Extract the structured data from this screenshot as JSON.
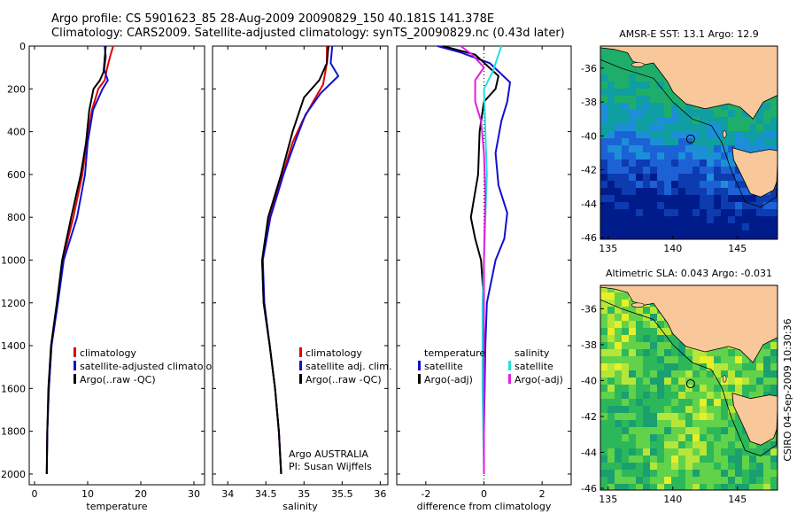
{
  "header": {
    "line1": "Argo profile: CS 5901623_85 28-Aug-2009 20090829_150 40.181S 141.378E",
    "line2": "Climatology: CARS2009. Satellite-adjusted climatology: synTS_20090829.nc (0.43d later)"
  },
  "colors": {
    "climatology": "#e00000",
    "satellite": "#1010d0",
    "argo": "#000000",
    "sal_sat": "#20e0e0",
    "sal_argo": "#e020e0",
    "land": "#f8c89a",
    "coast": "#000000"
  },
  "chart_data": [
    {
      "type": "line",
      "xlabel": "temperature",
      "xlim": [
        -1,
        32
      ],
      "xticks": [
        0,
        10,
        20,
        30
      ],
      "ylim": [
        0,
        2050
      ],
      "yticks": [
        0,
        200,
        400,
        600,
        800,
        1000,
        1200,
        1400,
        1600,
        1800,
        2000
      ],
      "legend": [
        "climatology",
        "satellite-adjusted climatology",
        "Argo(..raw -QC)"
      ],
      "series": [
        {
          "name": "climatology",
          "color": "#e00000",
          "values": [
            [
              14.8,
              0
            ],
            [
              14.2,
              50
            ],
            [
              13.6,
              110
            ],
            [
              13.2,
              160
            ],
            [
              12.0,
              200
            ],
            [
              10.8,
              300
            ],
            [
              9.8,
              450
            ],
            [
              9.0,
              600
            ],
            [
              7.3,
              800
            ],
            [
              5.3,
              1000
            ],
            [
              4.3,
              1200
            ],
            [
              3.2,
              1400
            ],
            [
              2.7,
              1600
            ],
            [
              2.4,
              1800
            ],
            [
              2.3,
              2000
            ]
          ]
        },
        {
          "name": "satellite-adjusted climatology",
          "color": "#1010d0",
          "values": [
            [
              13.2,
              0
            ],
            [
              13.4,
              50
            ],
            [
              13.1,
              110
            ],
            [
              13.8,
              160
            ],
            [
              12.8,
              200
            ],
            [
              11.0,
              300
            ],
            [
              10.0,
              450
            ],
            [
              9.5,
              600
            ],
            [
              8.0,
              800
            ],
            [
              5.5,
              1000
            ],
            [
              4.4,
              1200
            ],
            [
              3.2,
              1400
            ],
            [
              2.7,
              1600
            ],
            [
              2.4,
              1800
            ],
            [
              2.3,
              2000
            ]
          ]
        },
        {
          "name": "Argo(..raw -QC)",
          "color": "#000000",
          "values": [
            [
              13.4,
              0
            ],
            [
              13.2,
              60
            ],
            [
              13.0,
              120
            ],
            [
              12.3,
              160
            ],
            [
              11.1,
              200
            ],
            [
              10.3,
              300
            ],
            [
              9.7,
              450
            ],
            [
              8.7,
              600
            ],
            [
              6.9,
              800
            ],
            [
              5.2,
              1000
            ],
            [
              4.2,
              1200
            ],
            [
              3.1,
              1400
            ],
            [
              2.6,
              1600
            ],
            [
              2.4,
              1800
            ],
            [
              2.3,
              2000
            ]
          ]
        }
      ]
    },
    {
      "type": "line",
      "xlabel": "salinity",
      "xlim": [
        33.8,
        36.1
      ],
      "xticks": [
        34,
        34.5,
        35,
        35.5,
        36
      ],
      "xticklabels": [
        "34",
        "34.5",
        "35",
        "35.5",
        "36"
      ],
      "ylim": [
        0,
        2050
      ],
      "legend": [
        "climatology",
        "satellite adj. clim.",
        "Argo(..raw -QC)"
      ],
      "annotation": [
        "Argo AUSTRALIA",
        "PI: Susan Wijffels"
      ],
      "series": [
        {
          "name": "climatology",
          "color": "#e00000",
          "values": [
            [
              35.3,
              0
            ],
            [
              35.3,
              80
            ],
            [
              35.25,
              180
            ],
            [
              35.12,
              260
            ],
            [
              34.98,
              350
            ],
            [
              34.85,
              450
            ],
            [
              34.72,
              600
            ],
            [
              34.55,
              800
            ],
            [
              34.45,
              1000
            ],
            [
              34.47,
              1200
            ],
            [
              34.55,
              1400
            ],
            [
              34.62,
              1600
            ],
            [
              34.67,
              1800
            ],
            [
              34.7,
              2000
            ]
          ]
        },
        {
          "name": "satellite adj. clim.",
          "color": "#1010d0",
          "values": [
            [
              35.37,
              0
            ],
            [
              35.35,
              80
            ],
            [
              35.45,
              140
            ],
            [
              35.22,
              220
            ],
            [
              35.02,
              320
            ],
            [
              34.88,
              450
            ],
            [
              34.73,
              600
            ],
            [
              34.56,
              800
            ],
            [
              34.46,
              1000
            ],
            [
              34.48,
              1200
            ],
            [
              34.55,
              1400
            ],
            [
              34.62,
              1600
            ],
            [
              34.67,
              1800
            ],
            [
              34.7,
              2000
            ]
          ]
        },
        {
          "name": "Argo(..raw -QC)",
          "color": "#000000",
          "values": [
            [
              35.32,
              0
            ],
            [
              35.3,
              80
            ],
            [
              35.2,
              160
            ],
            [
              35.0,
              240
            ],
            [
              34.85,
              400
            ],
            [
              34.7,
              600
            ],
            [
              34.53,
              800
            ],
            [
              34.45,
              1000
            ],
            [
              34.47,
              1200
            ],
            [
              34.55,
              1400
            ],
            [
              34.62,
              1600
            ],
            [
              34.67,
              1800
            ],
            [
              34.7,
              2000
            ]
          ]
        }
      ]
    },
    {
      "type": "line",
      "xlabel": "difference from climatology",
      "xlim": [
        -3,
        3
      ],
      "xticks": [
        -2,
        0,
        2
      ],
      "ylim": [
        0,
        2050
      ],
      "legend": [
        "temperature",
        "satellite",
        "Argo(-adj)",
        "salinity",
        "satellite",
        "Argo(-adj)"
      ],
      "series": [
        {
          "name": "satellite",
          "color": "#1010d0",
          "values": [
            [
              -1.6,
              0
            ],
            [
              -0.8,
              30
            ],
            [
              0.2,
              80
            ],
            [
              0.9,
              170
            ],
            [
              0.8,
              260
            ],
            [
              0.6,
              350
            ],
            [
              0.4,
              500
            ],
            [
              0.5,
              650
            ],
            [
              0.8,
              780
            ],
            [
              0.7,
              900
            ],
            [
              0.4,
              1000
            ],
            [
              0.1,
              1200
            ],
            [
              0.05,
              1400
            ],
            [
              0,
              1800
            ],
            [
              0,
              2000
            ]
          ]
        },
        {
          "name": "Argo(-adj)",
          "color": "#000000",
          "values": [
            [
              -1.4,
              0
            ],
            [
              -0.3,
              40
            ],
            [
              0.5,
              140
            ],
            [
              0.4,
              200
            ],
            [
              0.0,
              260
            ],
            [
              -0.15,
              400
            ],
            [
              -0.2,
              600
            ],
            [
              -0.45,
              800
            ],
            [
              -0.3,
              900
            ],
            [
              -0.1,
              1000
            ],
            [
              0,
              1200
            ],
            [
              0,
              2000
            ]
          ]
        },
        {
          "name": "satellite",
          "color": "#20e0e0",
          "values": [
            [
              0.6,
              0
            ],
            [
              0.5,
              40
            ],
            [
              0.3,
              120
            ],
            [
              0.0,
              200
            ],
            [
              0.05,
              400
            ],
            [
              0.1,
              600
            ],
            [
              0.05,
              800
            ],
            [
              0.0,
              1000
            ],
            [
              -0.05,
              1200
            ],
            [
              -0.05,
              1600
            ],
            [
              0,
              2000
            ]
          ]
        },
        {
          "name": "Argo(-adj)",
          "color": "#e020e0",
          "values": [
            [
              -0.8,
              0
            ],
            [
              -0.4,
              40
            ],
            [
              0.0,
              100
            ],
            [
              -0.3,
              160
            ],
            [
              -0.3,
              260
            ],
            [
              -0.1,
              350
            ],
            [
              0.0,
              500
            ],
            [
              0.05,
              700
            ],
            [
              0.0,
              1000
            ],
            [
              0,
              2000
            ]
          ]
        }
      ]
    }
  ],
  "maps": [
    {
      "title": "AMSR-E SST: 13.1 Argo: 12.9",
      "lon_ticks": [
        135,
        140,
        145
      ],
      "lon_ticklabels": [
        "135",
        "140",
        "145"
      ],
      "lat_ticks": [
        -36,
        -38,
        -40,
        -42,
        -44,
        -46
      ],
      "lat_ticklabels": [
        "-36",
        "-38",
        "-40",
        "-42",
        "-44",
        "-46"
      ],
      "lon_range": [
        134.4,
        148.1
      ],
      "lat_range": [
        -46.1,
        -34.7
      ],
      "float_position": [
        141.378,
        -40.181
      ]
    },
    {
      "title": "Altimetric SLA: 0.043 Argo: -0.031",
      "lon_ticks": [
        135,
        140,
        145
      ],
      "lon_ticklabels": [
        "135",
        "140",
        "145"
      ],
      "lat_ticks": [
        -36,
        -38,
        -40,
        -42,
        -44,
        -46
      ],
      "lat_ticklabels": [
        "-36",
        "-38",
        "-40",
        "-42",
        "-44",
        "-46"
      ],
      "lon_range": [
        134.4,
        148.1
      ],
      "lat_range": [
        -46.1,
        -34.7
      ],
      "float_position": [
        141.378,
        -40.181
      ]
    }
  ],
  "footer": {
    "timestamp": "CSIRO 04-Sep-2009 10:30:36"
  }
}
